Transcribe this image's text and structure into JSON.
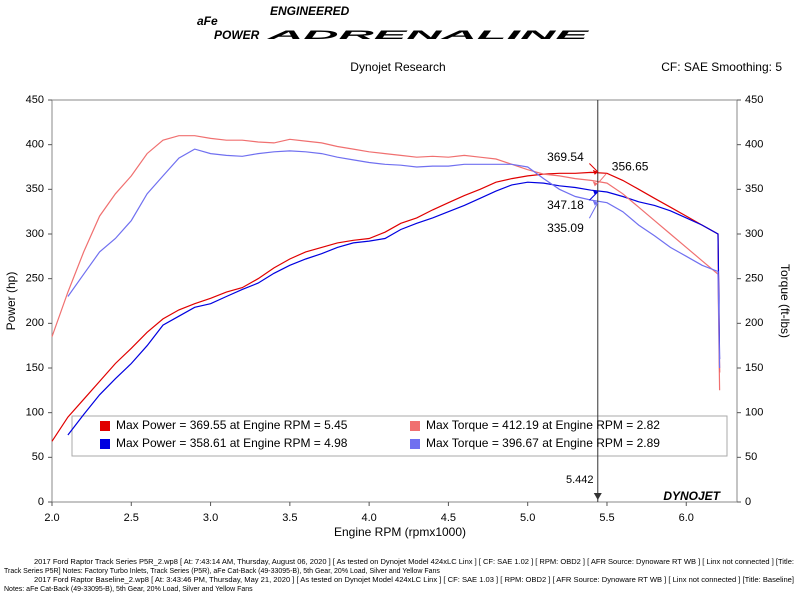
{
  "header": {
    "logo": "aFe",
    "logo_sub": "POWER",
    "tagline": "ENGINEERED",
    "brand": "ADRENALINE",
    "left": "Dynojet Research",
    "right": "CF: SAE Smoothing: 5"
  },
  "footer": [
    "2017 Ford Raptor Track Series P5R_2.wp8 [ At: 7:43:14 AM, Thursday, August 06, 2020 ] [ As tested on Dynojet Model 424xLC Linx ] [ CF: SAE 1.02 ] [ RPM: OBD2 ] [ AFR Source: Dynoware RT WB ] [ Linx not connected ] [Title:",
    "Track Series P5R]  Notes: Factory Turbo Inlets, Track Series (P5R), aFe Cat-Back (49-33095-B), 5th Gear, 20% Load, Silver and Yellow Fans",
    "2017 Ford Raptor Baseline_2.wp8 [ At: 3:43:46 PM, Thursday, May 21, 2020 ] [ As tested on Dynojet Model 424xLC Linx ] [ CF: SAE 1.03 ] [ RPM: OBD2 ] [ AFR Source: Dynoware RT WB ] [ Linx not connected ] [Title: Baseline]",
    "Notes: aFe Cat-Back (49-33095-B), 5th Gear, 20% Load, Silver and Yellow Fans"
  ],
  "watermark": "DYNOJET",
  "chart_data": {
    "type": "line",
    "x_label": "Engine RPM (rpmx1000)",
    "y_label": "Power (hp)",
    "y2_label": "Torque (ft-lbs)",
    "xlim": [
      2.0,
      6.32
    ],
    "ylim": [
      0,
      450
    ],
    "y2lim": [
      0,
      450
    ],
    "grid": false,
    "xticks": [
      {
        "value": 2,
        "label": "2.0"
      },
      2.5,
      {
        "value": 3,
        "label": "3.0"
      },
      3.5,
      {
        "value": 4,
        "label": "4.0"
      },
      4.5,
      {
        "value": 5,
        "label": "5.0"
      },
      5.5,
      {
        "value": 6,
        "label": "6.0"
      }
    ],
    "yticks": [
      0,
      50,
      100,
      150,
      200,
      250,
      300,
      350,
      400,
      450
    ],
    "y2ticks": [
      0,
      50,
      100,
      150,
      200,
      250,
      300,
      350,
      400,
      450
    ],
    "cursor_x": 5.442,
    "x": [
      2.0,
      2.1,
      2.2,
      2.3,
      2.4,
      2.5,
      2.6,
      2.7,
      2.8,
      2.9,
      3.0,
      3.1,
      3.2,
      3.3,
      3.4,
      3.5,
      3.6,
      3.7,
      3.8,
      3.9,
      4.0,
      4.1,
      4.2,
      4.3,
      4.4,
      4.5,
      4.6,
      4.7,
      4.8,
      4.9,
      5.0,
      5.1,
      5.2,
      5.3,
      5.4,
      5.5,
      5.6,
      5.7,
      5.8,
      5.9,
      6.0,
      6.1,
      6.2,
      6.21
    ],
    "series": [
      {
        "name": "Max Power = 369.55 at Engine RPM = 5.45",
        "color": "#e00000",
        "cursor_value": 369.54,
        "values": [
          68,
          95,
          115,
          135,
          155,
          172,
          190,
          205,
          215,
          222,
          228,
          235,
          240,
          250,
          262,
          272,
          280,
          285,
          290,
          293,
          295,
          302,
          312,
          318,
          327,
          335,
          343,
          350,
          358,
          362,
          365,
          367,
          368,
          368,
          369,
          368,
          360,
          350,
          340,
          330,
          320,
          310,
          300,
          145
        ]
      },
      {
        "name": "Max Power = 358.61 at Engine RPM = 4.98",
        "color": "#0000e0",
        "cursor_value": 347.18,
        "values": [
          null,
          75,
          98,
          120,
          138,
          155,
          175,
          198,
          208,
          218,
          222,
          230,
          238,
          245,
          256,
          265,
          272,
          278,
          285,
          290,
          292,
          295,
          305,
          312,
          318,
          325,
          332,
          340,
          348,
          355,
          358,
          357,
          354,
          352,
          349,
          347,
          342,
          336,
          332,
          326,
          318,
          310,
          300,
          160
        ]
      },
      {
        "name": "Max Torque = 412.19 at Engine RPM = 2.82",
        "color": "#f07070",
        "axis": "y2",
        "cursor_value": 356.65,
        "values": [
          185,
          235,
          280,
          320,
          345,
          365,
          390,
          405,
          410,
          410,
          407,
          405,
          405,
          403,
          402,
          406,
          404,
          402,
          398,
          395,
          392,
          390,
          388,
          386,
          387,
          386,
          388,
          386,
          384,
          378,
          372,
          367,
          365,
          362,
          360,
          357,
          345,
          330,
          315,
          300,
          285,
          270,
          255,
          125
        ]
      },
      {
        "name": "Max Torque = 396.67 at Engine RPM = 2.89",
        "color": "#7070f0",
        "axis": "y2",
        "cursor_value": 335.09,
        "values": [
          null,
          230,
          255,
          280,
          295,
          315,
          345,
          365,
          385,
          395,
          390,
          388,
          387,
          390,
          392,
          393,
          392,
          390,
          386,
          383,
          380,
          378,
          377,
          375,
          376,
          376,
          378,
          378,
          378,
          378,
          375,
          362,
          350,
          342,
          338,
          335,
          325,
          310,
          298,
          285,
          275,
          265,
          258,
          150
        ]
      }
    ]
  }
}
